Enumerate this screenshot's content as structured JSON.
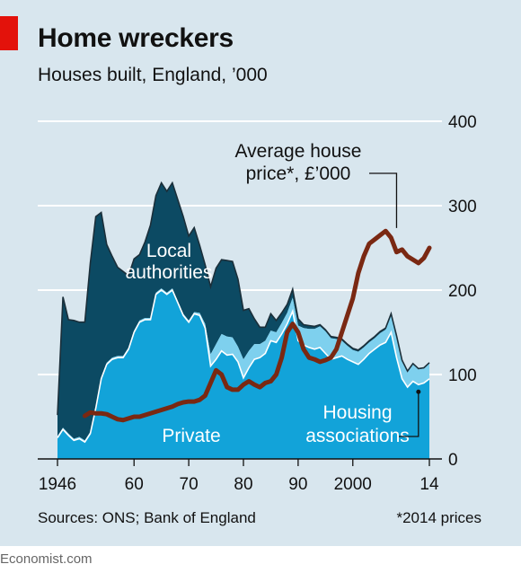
{
  "header": {
    "title": "Home wreckers",
    "subtitle": "Houses built, England, ’000"
  },
  "footer": {
    "sources": "Sources: ONS; Bank of England",
    "footnote": "*2014 prices",
    "brand": "Economist.com"
  },
  "colors": {
    "background": "#d8e6ee",
    "local_authorities": "#0c4a63",
    "private": "#12a3d9",
    "housing_associations": "#7ed0ee",
    "house_price": "#7a2812",
    "accent_red": "#e3120b"
  },
  "chart_data": {
    "type": "area",
    "title": "Home wreckers",
    "subtitle": "Houses built, England, ’000",
    "x_tick_labels": [
      "1946",
      "60",
      "70",
      "80",
      "90",
      "2000",
      "14"
    ],
    "x_ticks": [
      1946,
      1960,
      1970,
      1980,
      1990,
      2000,
      2014
    ],
    "y_ticks": [
      0,
      100,
      200,
      300,
      400
    ],
    "ylim": [
      0,
      400
    ],
    "xlim": [
      1946,
      2014
    ],
    "grid": true,
    "y_axis_side": "right",
    "years": [
      1946,
      1947,
      1948,
      1949,
      1950,
      1951,
      1952,
      1953,
      1954,
      1955,
      1956,
      1957,
      1958,
      1959,
      1960,
      1961,
      1962,
      1963,
      1964,
      1965,
      1966,
      1967,
      1968,
      1969,
      1970,
      1971,
      1972,
      1973,
      1974,
      1975,
      1976,
      1977,
      1978,
      1979,
      1980,
      1981,
      1982,
      1983,
      1984,
      1985,
      1986,
      1987,
      1988,
      1989,
      1990,
      1991,
      1992,
      1993,
      1994,
      1995,
      1996,
      1997,
      1998,
      1999,
      2000,
      2001,
      2002,
      2003,
      2004,
      2005,
      2006,
      2007,
      2008,
      2009,
      2010,
      2011,
      2012,
      2013,
      2014
    ],
    "series": [
      {
        "name": "Private",
        "kind": "stacked-area",
        "values": [
          25,
          35,
          28,
          22,
          24,
          20,
          30,
          60,
          95,
          112,
          118,
          120,
          120,
          130,
          150,
          162,
          165,
          165,
          195,
          200,
          195,
          200,
          185,
          170,
          162,
          172,
          170,
          155,
          110,
          118,
          128,
          123,
          124,
          115,
          96,
          108,
          118,
          120,
          125,
          140,
          138,
          148,
          160,
          175,
          140,
          135,
          132,
          130,
          132,
          125,
          118,
          120,
          122,
          118,
          115,
          112,
          118,
          125,
          130,
          135,
          138,
          150,
          120,
          95,
          85,
          92,
          88,
          90,
          95
        ]
      },
      {
        "name": "Housing associations",
        "kind": "stacked-area",
        "values": [
          2,
          2,
          2,
          2,
          2,
          2,
          2,
          2,
          2,
          2,
          2,
          2,
          2,
          2,
          2,
          2,
          2,
          2,
          2,
          2,
          2,
          2,
          2,
          2,
          2,
          2,
          3,
          5,
          14,
          18,
          20,
          22,
          20,
          18,
          22,
          20,
          18,
          16,
          15,
          12,
          12,
          13,
          13,
          16,
          18,
          20,
          22,
          24,
          25,
          26,
          25,
          22,
          18,
          16,
          14,
          15,
          14,
          13,
          13,
          14,
          15,
          20,
          24,
          20,
          18,
          20,
          18,
          17,
          18
        ]
      },
      {
        "name": "Local authorities",
        "kind": "stacked-area",
        "values": [
          25,
          155,
          135,
          140,
          136,
          140,
          200,
          225,
          195,
          140,
          120,
          105,
          100,
          85,
          85,
          78,
          90,
          110,
          115,
          125,
          120,
          125,
          120,
          115,
          100,
          100,
          80,
          70,
          80,
          90,
          88,
          90,
          90,
          80,
          58,
          50,
          30,
          20,
          16,
          20,
          14,
          12,
          10,
          10,
          8,
          4,
          4,
          3,
          2,
          2,
          2,
          2,
          2,
          2,
          2,
          2,
          2,
          2,
          2,
          2,
          2,
          2,
          2,
          2,
          1,
          1,
          1,
          1,
          1
        ]
      },
      {
        "name": "Average house price*, £’000",
        "kind": "line",
        "unit": "£’000 (2014 prices)",
        "values": [
          51,
          55,
          54,
          54,
          53,
          50,
          47,
          46,
          48,
          50,
          50,
          52,
          54,
          56,
          58,
          60,
          62,
          65,
          67,
          68,
          68,
          70,
          75,
          90,
          105,
          100,
          85,
          82,
          82,
          88,
          92,
          88,
          85,
          90,
          92,
          100,
          120,
          150,
          160,
          150,
          130,
          120,
          118,
          115,
          117,
          120,
          130,
          150,
          170,
          190,
          220,
          240,
          255,
          260,
          265,
          270,
          262,
          245,
          248,
          240,
          236,
          232,
          238,
          250
        ]
      }
    ],
    "price_years_start": 1951,
    "labels": {
      "local_authorities": "Local authorities",
      "private": "Private",
      "housing_associations": "Housing associations",
      "house_price": "Average house price*, £’000"
    },
    "label_lines": {
      "local_authorities": [
        "Local",
        "authorities"
      ],
      "housing_associations": [
        "Housing",
        "associations"
      ],
      "house_price": [
        "Average house",
        "price*, £’000"
      ]
    }
  }
}
